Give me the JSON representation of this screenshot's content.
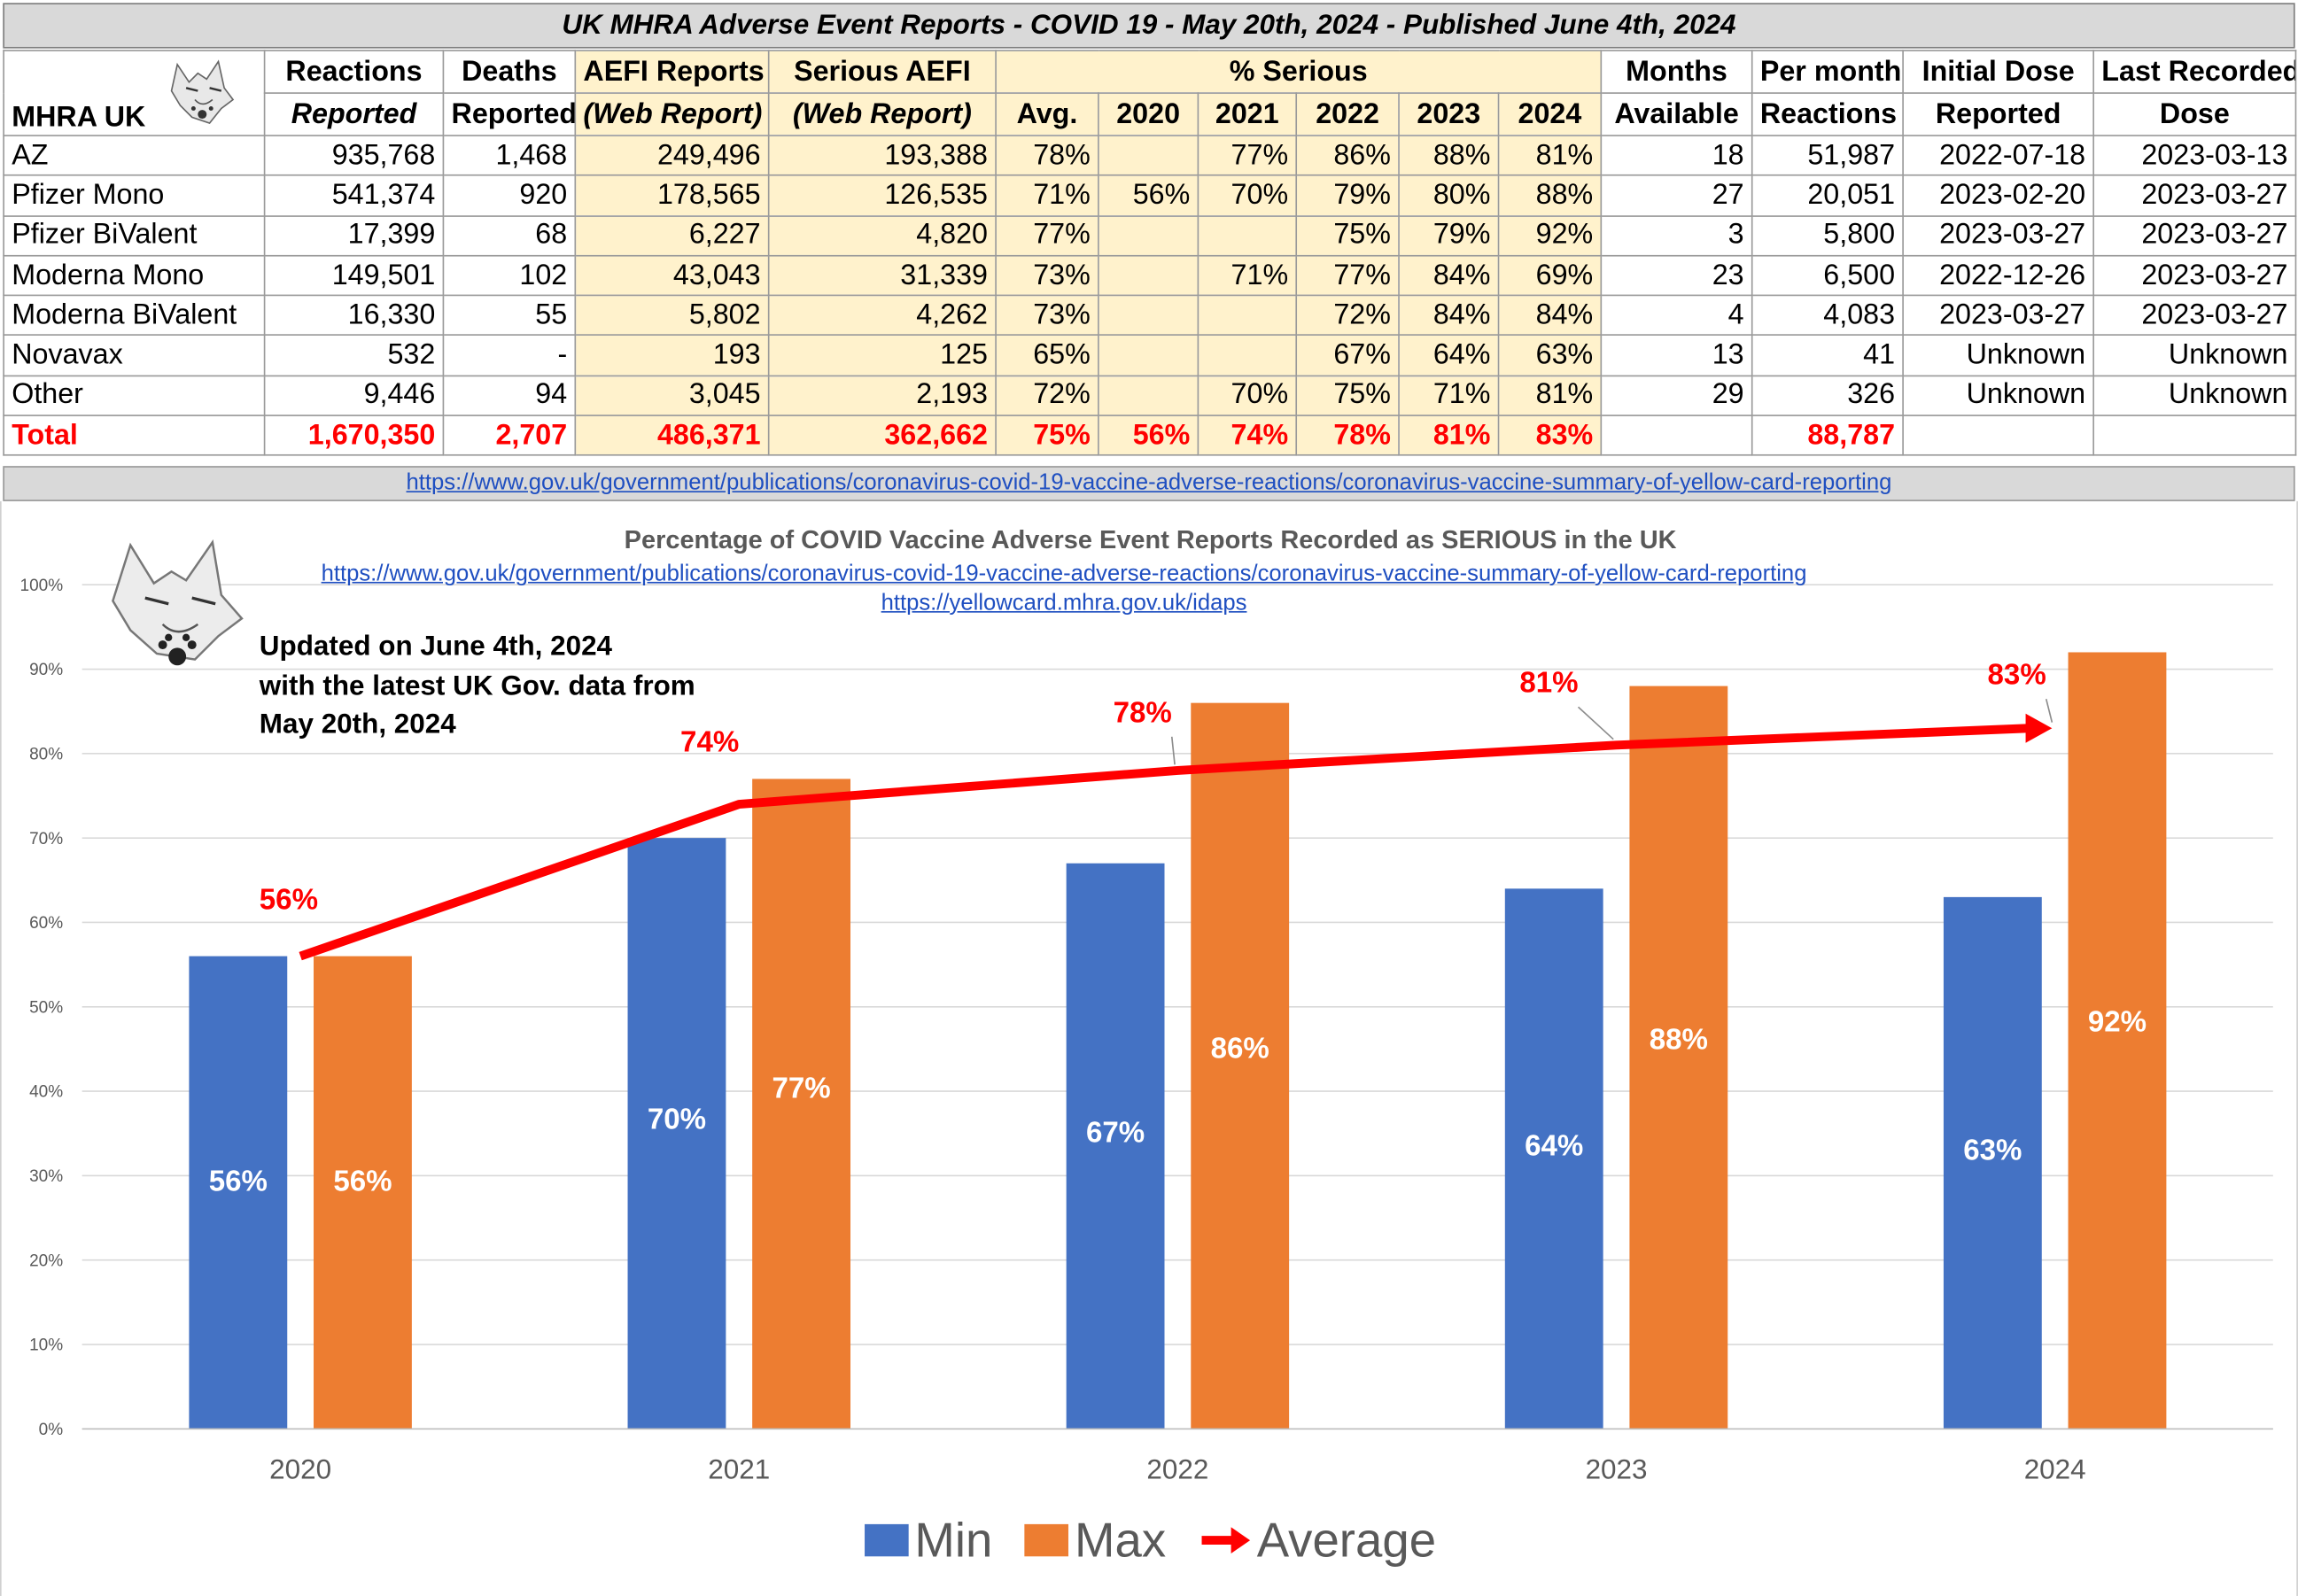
{
  "table": {
    "title": "UK MHRA Adverse Event Reports -  COVID 19 - May 20th, 2024 - Published June 4th, 2024",
    "corner_label": "MHRA UK",
    "headers": {
      "reactions": [
        "Reactions",
        "Reported"
      ],
      "deaths": [
        "Deaths",
        "Reported"
      ],
      "aefi": [
        "AEFI Reports",
        "(Web Report)"
      ],
      "serious": [
        "Serious AEFI",
        "(Web Report)"
      ],
      "pct_serious": "% Serious",
      "pct_cols": [
        "Avg.",
        "2020",
        "2021",
        "2022",
        "2023",
        "2024"
      ],
      "months": [
        "Months",
        "Available"
      ],
      "per_month": [
        "Per month",
        "Reactions"
      ],
      "initial": [
        "Initial Dose",
        "Reported"
      ],
      "last": [
        "Last Recorded",
        "Dose"
      ]
    },
    "rows": [
      {
        "name": "AZ",
        "reactions": "935,768",
        "deaths": "1,468",
        "aefi": "249,496",
        "serious": "193,388",
        "avg": "78%",
        "y2020": "",
        "y2021": "77%",
        "y2022": "86%",
        "y2023": "88%",
        "y2024": "81%",
        "months": "18",
        "per_month": "51,987",
        "initial": "2022-07-18",
        "last": "2023-03-13"
      },
      {
        "name": "Pfizer Mono",
        "reactions": "541,374",
        "deaths": "920",
        "aefi": "178,565",
        "serious": "126,535",
        "avg": "71%",
        "y2020": "56%",
        "y2021": "70%",
        "y2022": "79%",
        "y2023": "80%",
        "y2024": "88%",
        "months": "27",
        "per_month": "20,051",
        "initial": "2023-02-20",
        "last": "2023-03-27"
      },
      {
        "name": "Pfizer BiValent",
        "reactions": "17,399",
        "deaths": "68",
        "aefi": "6,227",
        "serious": "4,820",
        "avg": "77%",
        "y2020": "",
        "y2021": "",
        "y2022": "75%",
        "y2023": "79%",
        "y2024": "92%",
        "months": "3",
        "per_month": "5,800",
        "initial": "2023-03-27",
        "last": "2023-03-27"
      },
      {
        "name": "Moderna Mono",
        "reactions": "149,501",
        "deaths": "102",
        "aefi": "43,043",
        "serious": "31,339",
        "avg": "73%",
        "y2020": "",
        "y2021": "71%",
        "y2022": "77%",
        "y2023": "84%",
        "y2024": "69%",
        "months": "23",
        "per_month": "6,500",
        "initial": "2022-12-26",
        "last": "2023-03-27"
      },
      {
        "name": "Moderna BiValent",
        "reactions": "16,330",
        "deaths": "55",
        "aefi": "5,802",
        "serious": "4,262",
        "avg": "73%",
        "y2020": "",
        "y2021": "",
        "y2022": "72%",
        "y2023": "84%",
        "y2024": "84%",
        "months": "4",
        "per_month": "4,083",
        "initial": "2023-03-27",
        "last": "2023-03-27"
      },
      {
        "name": "Novavax",
        "reactions": "532",
        "deaths": "-",
        "aefi": "193",
        "serious": "125",
        "avg": "65%",
        "y2020": "",
        "y2021": "",
        "y2022": "67%",
        "y2023": "64%",
        "y2024": "63%",
        "months": "13",
        "per_month": "41",
        "initial": "Unknown",
        "last": "Unknown"
      },
      {
        "name": "Other",
        "reactions": "9,446",
        "deaths": "94",
        "aefi": "3,045",
        "serious": "2,193",
        "avg": "72%",
        "y2020": "",
        "y2021": "70%",
        "y2022": "75%",
        "y2023": "71%",
        "y2024": "81%",
        "months": "29",
        "per_month": "326",
        "initial": "Unknown",
        "last": "Unknown"
      }
    ],
    "total": {
      "name": "Total",
      "reactions": "1,670,350",
      "deaths": "2,707",
      "aefi": "486,371",
      "serious": "362,662",
      "avg": "75%",
      "y2020": "56%",
      "y2021": "74%",
      "y2022": "78%",
      "y2023": "81%",
      "y2024": "83%",
      "months": "",
      "per_month": "88,787",
      "initial": "",
      "last": ""
    },
    "source_url": "https://www.gov.uk/government/publications/coronavirus-covid-19-vaccine-adverse-reactions/coronavirus-vaccine-summary-of-yellow-card-reporting"
  },
  "chart": {
    "url1": "https://www.gov.uk/government/publications/coronavirus-covid-19-vaccine-adverse-reactions/coronavirus-vaccine-summary-of-yellow-card-reporting",
    "url2": "https://yellowcard.mhra.gov.uk/idaps",
    "note_lines": [
      "Updated on June 4th, 2024",
      "with the latest UK Gov. data from",
      "May 20th, 2024"
    ]
  },
  "colors": {
    "min": "#4472c4",
    "max": "#ed7d31",
    "avg": "#ff0000",
    "grid": "#d9d9d9",
    "axis_text": "#595959"
  },
  "chart_data": {
    "type": "bar",
    "title": "Percentage of COVID Vaccine Adverse Event Reports Recorded as SERIOUS in the UK",
    "categories": [
      "2020",
      "2021",
      "2022",
      "2023",
      "2024"
    ],
    "series": [
      {
        "name": "Min",
        "type": "bar",
        "values": [
          56,
          70,
          67,
          64,
          63
        ],
        "labels": [
          "56%",
          "70%",
          "67%",
          "64%",
          "63%"
        ]
      },
      {
        "name": "Max",
        "type": "bar",
        "values": [
          56,
          77,
          86,
          88,
          92
        ],
        "labels": [
          "56%",
          "77%",
          "86%",
          "88%",
          "92%"
        ]
      },
      {
        "name": "Average",
        "type": "line",
        "values": [
          56,
          74,
          78,
          81,
          83
        ],
        "labels": [
          "56%",
          "74%",
          "78%",
          "81%",
          "83%"
        ]
      }
    ],
    "yticks": [
      "0%",
      "10%",
      "20%",
      "30%",
      "40%",
      "50%",
      "60%",
      "70%",
      "80%",
      "90%",
      "100%"
    ],
    "ylim": [
      0,
      100
    ],
    "legend": [
      "Min",
      "Max",
      "Average"
    ],
    "legend_position": "bottom"
  }
}
